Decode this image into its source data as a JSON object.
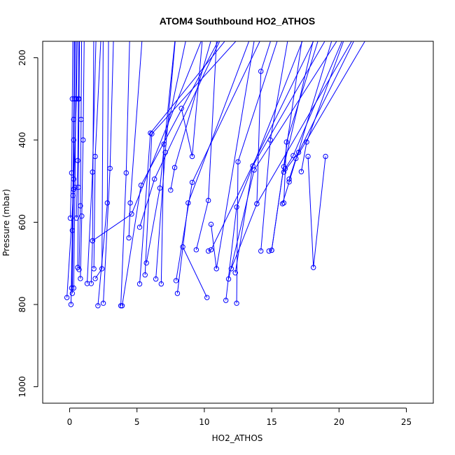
{
  "chart_data": {
    "type": "line",
    "title": "ATOM4 Southbound HO2_ATHOS",
    "xlabel": "HO2_ATHOS",
    "ylabel": "Pressure (mbar)",
    "xlim": [
      -2,
      27
    ],
    "ylim": [
      1040,
      160
    ],
    "y_reversed": true,
    "x_ticks": [
      0,
      5,
      10,
      15,
      20,
      25
    ],
    "y_ticks": [
      200,
      400,
      600,
      800,
      1000
    ],
    "grid": false,
    "legend": "none",
    "series_color": "#0000ff",
    "marker": "open-circle",
    "series": [
      {
        "x": [
          -0.2,
          0.3,
          0.5,
          0.6
        ],
        "y": [
          783,
          520,
          300,
          100
        ]
      },
      {
        "x": [
          0.1,
          0.2,
          0.3,
          0.35
        ],
        "y": [
          800,
          620,
          400,
          100
        ]
      },
      {
        "x": [
          0.15,
          0.25,
          0.3,
          0.4
        ],
        "y": [
          760,
          535,
          350,
          100
        ]
      },
      {
        "x": [
          0.3,
          0.4,
          0.45,
          0.5
        ],
        "y": [
          760,
          515,
          300,
          100
        ]
      },
      {
        "x": [
          0.5,
          0.6,
          0.65,
          0.7
        ],
        "y": [
          590,
          450,
          300,
          100
        ]
      },
      {
        "x": [
          0.7,
          0.8,
          0.85,
          0.9
        ],
        "y": [
          715,
          560,
          350,
          100
        ]
      },
      {
        "x": [
          0.8,
          0.9,
          1.0,
          1.1
        ],
        "y": [
          737,
          585,
          400,
          100
        ]
      },
      {
        "x": [
          0.6,
          0.65,
          0.7,
          0.75
        ],
        "y": [
          710,
          515,
          300,
          100
        ]
      },
      {
        "x": [
          0.2,
          0.3,
          0.35,
          0.4
        ],
        "y": [
          773,
          495,
          300,
          100
        ]
      },
      {
        "x": [
          0.05,
          0.15,
          0.2,
          0.25
        ],
        "y": [
          590,
          480,
          300,
          100
        ]
      },
      {
        "x": [
          1.8,
          1.9,
          2.4
        ],
        "y": [
          713,
          440,
          100
        ]
      },
      {
        "x": [
          1.3,
          1.7,
          2.0
        ],
        "y": [
          749,
          478,
          100
        ]
      },
      {
        "x": [
          1.6,
          1.7,
          1.8
        ],
        "y": [
          749,
          645,
          100
        ]
      },
      {
        "x": [
          2.5,
          3.0,
          3.3
        ],
        "y": [
          797,
          469,
          100
        ]
      },
      {
        "x": [
          2.1,
          2.8,
          2.9
        ],
        "y": [
          803,
          553,
          100
        ]
      },
      {
        "x": [
          1.9,
          2.4,
          2.5
        ],
        "y": [
          737,
          713,
          100
        ]
      },
      {
        "x": [
          3.8,
          4.2,
          4.5
        ],
        "y": [
          803,
          480,
          100
        ]
      },
      {
        "x": [
          4.4,
          4.5,
          5.5
        ],
        "y": [
          638,
          553,
          100
        ]
      },
      {
        "x": [
          1.7,
          4.6,
          10.5
        ],
        "y": [
          645,
          580,
          100
        ]
      },
      {
        "x": [
          3.9,
          5.3,
          12.0
        ],
        "y": [
          803,
          510,
          100
        ]
      },
      {
        "x": [
          5.2,
          6.0,
          13.0
        ],
        "y": [
          750,
          383,
          100
        ]
      },
      {
        "x": [
          5.6,
          6.1,
          14.0
        ],
        "y": [
          728,
          385,
          100
        ]
      },
      {
        "x": [
          5.2,
          6.3,
          12.0
        ],
        "y": [
          612,
          495,
          100
        ]
      },
      {
        "x": [
          5.7,
          6.7,
          8.0
        ],
        "y": [
          699,
          517,
          100
        ]
      },
      {
        "x": [
          6.8,
          7.0,
          9.0
        ],
        "y": [
          750,
          410,
          100
        ]
      },
      {
        "x": [
          6.4,
          7.1,
          8.0
        ],
        "y": [
          738,
          430,
          100
        ]
      },
      {
        "x": [
          7.5,
          7.8,
          11.0
        ],
        "y": [
          522,
          467,
          100
        ]
      },
      {
        "x": [
          8.0,
          8.8,
          14.0
        ],
        "y": [
          773,
          553,
          100
        ]
      },
      {
        "x": [
          7.9,
          9.1,
          15.0
        ],
        "y": [
          742,
          503,
          100
        ]
      },
      {
        "x": [
          8.3,
          9.1,
          10.0
        ],
        "y": [
          323,
          440,
          100
        ]
      },
      {
        "x": [
          10.2,
          8.4
        ],
        "y": [
          783,
          660
        ]
      },
      {
        "x": [
          9.4,
          10.3,
          11.0
        ],
        "y": [
          667,
          547,
          100
        ]
      },
      {
        "x": [
          10.5,
          10.9,
          14.0
        ],
        "y": [
          605,
          713,
          100
        ]
      },
      {
        "x": [
          10.3,
          10.5,
          19.0
        ],
        "y": [
          670,
          667,
          100
        ]
      },
      {
        "x": [
          12.4,
          12.5,
          16.0
        ],
        "y": [
          797,
          453,
          100
        ]
      },
      {
        "x": [
          11.6,
          12.4,
          18.0
        ],
        "y": [
          790,
          563,
          100
        ]
      },
      {
        "x": [
          12.3,
          13.6,
          20.0
        ],
        "y": [
          723,
          463,
          100
        ]
      },
      {
        "x": [
          11.8,
          13.7,
          21.0
        ],
        "y": [
          738,
          473,
          100
        ]
      },
      {
        "x": [
          12.0,
          13.9,
          22.0
        ],
        "y": [
          713,
          555,
          100
        ]
      },
      {
        "x": [
          13.9,
          14.2,
          15.5
        ],
        "y": [
          555,
          233,
          100
        ]
      },
      {
        "x": [
          14.2,
          14.9,
          16.5
        ],
        "y": [
          670,
          400,
          100
        ]
      },
      {
        "x": [
          14.8,
          15.0,
          17.5
        ],
        "y": [
          670,
          668,
          100
        ]
      },
      {
        "x": [
          15.0,
          15.9,
          18.5
        ],
        "y": [
          668,
          465,
          100
        ]
      },
      {
        "x": [
          15.9,
          16.1,
          19.0
        ],
        "y": [
          553,
          405,
          100
        ]
      },
      {
        "x": [
          15.8,
          16.3,
          20.0
        ],
        "y": [
          555,
          502,
          100
        ]
      },
      {
        "x": [
          16.0,
          16.6,
          21.0
        ],
        "y": [
          470,
          438,
          100
        ]
      },
      {
        "x": [
          16.3,
          16.8,
          23.0
        ],
        "y": [
          495,
          445,
          100
        ]
      },
      {
        "x": [
          15.9,
          17.0,
          22.0
        ],
        "y": [
          478,
          430,
          100
        ]
      },
      {
        "x": [
          17.2,
          17.6,
          21.0
        ],
        "y": [
          477,
          405,
          100
        ]
      },
      {
        "x": [
          17.7,
          18.1,
          19.0
        ],
        "y": [
          440,
          710,
          440
        ]
      }
    ]
  }
}
